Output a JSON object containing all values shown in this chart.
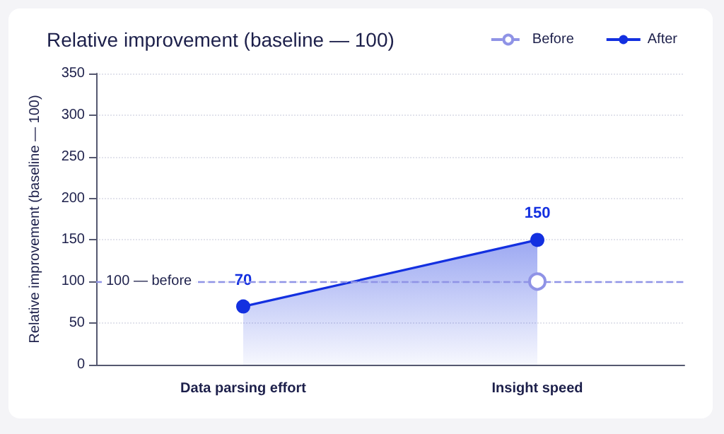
{
  "chart_data": {
    "type": "area",
    "title": "Relative improvement (baseline — 100)",
    "ylabel": "Relative improvement (baseline — 100)",
    "categories": [
      "Data parsing effort",
      "Insight speed"
    ],
    "series": [
      {
        "name": "Before",
        "type": "line",
        "color": "#8f93e6",
        "values": [
          null,
          100
        ],
        "line_style": "dashed",
        "marker": "circle"
      },
      {
        "name": "After",
        "color": "#1330e0",
        "values": [
          70,
          150
        ],
        "line_style": "solid",
        "marker": "circle",
        "data_labels": true
      }
    ],
    "ref_lines": [
      {
        "axis": "y",
        "value": 100,
        "label": "100 — before",
        "color": "#8f93e6",
        "line_style": "dashed"
      }
    ],
    "ylim": [
      0,
      350
    ],
    "yticks": [
      0,
      50,
      100,
      150,
      200,
      250,
      300,
      350
    ],
    "grid": "y",
    "legend": "top right"
  }
}
